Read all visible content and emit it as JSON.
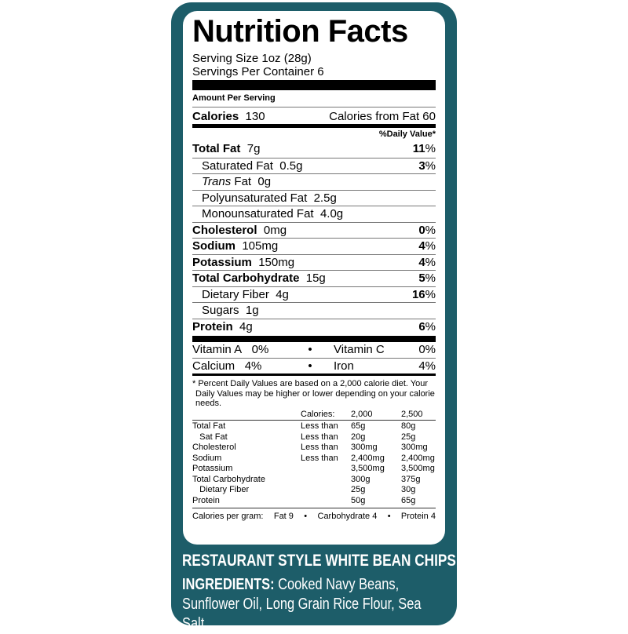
{
  "title": "Nutrition Facts",
  "serving_size": "Serving Size 1oz (28g)",
  "servings_per_container": "Servings Per Container 6",
  "amount_per_serving": "Amount Per Serving",
  "calories": {
    "label": "Calories",
    "value": "130",
    "from_fat": "Calories from Fat 60"
  },
  "daily_value_header": "%Daily Value*",
  "nutrients": [
    {
      "name": "Total Fat",
      "amount": "7g",
      "dv": "11",
      "bold": true,
      "indent": false
    },
    {
      "name": "Saturated Fat",
      "amount": "0.5g",
      "dv": "3",
      "bold": false,
      "indent": true
    },
    {
      "name": "Trans",
      "name2": " Fat",
      "amount": "0g",
      "dv": "",
      "bold": false,
      "indent": true,
      "italic": true
    },
    {
      "name": "Polyunsaturated Fat",
      "amount": "2.5g",
      "dv": "",
      "bold": false,
      "indent": true
    },
    {
      "name": "Monounsaturated Fat",
      "amount": "4.0g",
      "dv": "",
      "bold": false,
      "indent": true
    },
    {
      "name": "Cholesterol",
      "amount": "0mg",
      "dv": "0",
      "bold": true,
      "indent": false
    },
    {
      "name": "Sodium",
      "amount": "105mg",
      "dv": "4",
      "bold": true,
      "indent": false
    },
    {
      "name": "Potassium",
      "amount": "150mg",
      "dv": "4",
      "bold": true,
      "indent": false
    },
    {
      "name": "Total Carbohydrate",
      "amount": "15g",
      "dv": "5",
      "bold": true,
      "indent": false
    },
    {
      "name": "Dietary Fiber",
      "amount": "4g",
      "dv": "16",
      "bold": false,
      "indent": true
    },
    {
      "name": "Sugars",
      "amount": "1g",
      "dv": "",
      "bold": false,
      "indent": true
    },
    {
      "name": "Protein",
      "amount": "4g",
      "dv": "6",
      "bold": true,
      "indent": false
    }
  ],
  "vitamins": [
    [
      "Vitamin A",
      "0%",
      "•",
      "Vitamin C",
      "0%"
    ],
    [
      "Calcium",
      "4%",
      "•",
      "Iron",
      "4%"
    ]
  ],
  "footnote": "* Percent Daily Values are based on a 2,000 calorie diet. Your Daily Values may be higher or lower depending on your calorie needs.",
  "dv_table": {
    "header": [
      "",
      "Calories:",
      "2,000",
      "2,500"
    ],
    "rows": [
      [
        "Total Fat",
        "Less than",
        "65g",
        "80g"
      ],
      [
        "   Sat Fat",
        "Less than",
        "20g",
        "25g"
      ],
      [
        "Cholesterol",
        "Less than",
        "300mg",
        "300mg"
      ],
      [
        "Sodium",
        "Less than",
        "2,400mg",
        "2,400mg"
      ],
      [
        "Potassium",
        "",
        "3,500mg",
        "3,500mg"
      ],
      [
        "Total Carbohydrate",
        "",
        "300g",
        "375g"
      ],
      [
        "   Dietary Fiber",
        "",
        "25g",
        "30g"
      ],
      [
        "Protein",
        "",
        "50g",
        "65g"
      ]
    ]
  },
  "calories_per_gram": {
    "label": "Calories per gram:",
    "fat": "Fat 9",
    "carb": "Carbohydrate 4",
    "protein": "Protein 4",
    "sep": "•"
  },
  "product_name": "RESTAURANT STYLE WHITE BEAN CHIPS",
  "ingredients": {
    "label": "INGREDIENTS:",
    "text": " Cooked Navy Beans, Sunflower Oil, Long Grain Rice Flour, Sea Salt."
  },
  "colors": {
    "panel": "#1d5d69"
  }
}
